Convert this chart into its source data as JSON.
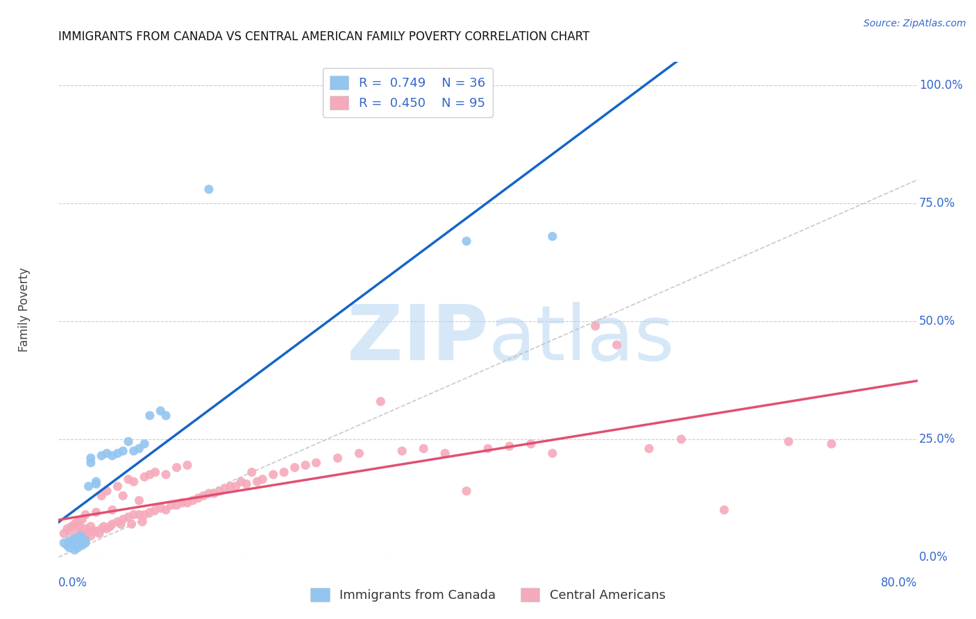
{
  "title": "IMMIGRANTS FROM CANADA VS CENTRAL AMERICAN FAMILY POVERTY CORRELATION CHART",
  "source": "Source: ZipAtlas.com",
  "ylabel": "Family Poverty",
  "ytick_labels": [
    "100.0%",
    "75.0%",
    "50.0%",
    "25.0%",
    "0.0%"
  ],
  "ytick_values": [
    1.0,
    0.75,
    0.5,
    0.25,
    0.0
  ],
  "xlim": [
    0.0,
    0.8
  ],
  "ylim": [
    0.0,
    1.05
  ],
  "canada_R": 0.749,
  "canada_N": 36,
  "central_R": 0.45,
  "central_N": 95,
  "canada_color": "#92C5F0",
  "central_color": "#F5AABB",
  "canada_line_color": "#1565C8",
  "central_line_color": "#E05070",
  "diagonal_color": "#bbbbbb",
  "text_color": "#3366CC",
  "background_color": "#ffffff",
  "watermark_color": "#d6e8f8",
  "canada_scatter_x": [
    0.005,
    0.008,
    0.01,
    0.01,
    0.012,
    0.014,
    0.015,
    0.015,
    0.018,
    0.018,
    0.02,
    0.02,
    0.022,
    0.022,
    0.025,
    0.025,
    0.028,
    0.03,
    0.03,
    0.035,
    0.035,
    0.04,
    0.045,
    0.05,
    0.055,
    0.06,
    0.065,
    0.07,
    0.075,
    0.08,
    0.085,
    0.095,
    0.1,
    0.14,
    0.38,
    0.46
  ],
  "canada_scatter_y": [
    0.03,
    0.025,
    0.02,
    0.035,
    0.03,
    0.025,
    0.04,
    0.015,
    0.02,
    0.03,
    0.03,
    0.045,
    0.025,
    0.04,
    0.035,
    0.03,
    0.15,
    0.2,
    0.21,
    0.155,
    0.16,
    0.215,
    0.22,
    0.215,
    0.22,
    0.225,
    0.245,
    0.225,
    0.23,
    0.24,
    0.3,
    0.31,
    0.3,
    0.78,
    0.67,
    0.68
  ],
  "central_scatter_x": [
    0.005,
    0.008,
    0.01,
    0.012,
    0.015,
    0.015,
    0.018,
    0.018,
    0.02,
    0.02,
    0.022,
    0.022,
    0.025,
    0.025,
    0.025,
    0.028,
    0.03,
    0.03,
    0.032,
    0.035,
    0.035,
    0.038,
    0.04,
    0.04,
    0.042,
    0.045,
    0.045,
    0.048,
    0.05,
    0.05,
    0.055,
    0.055,
    0.058,
    0.06,
    0.06,
    0.065,
    0.065,
    0.068,
    0.07,
    0.07,
    0.075,
    0.075,
    0.078,
    0.08,
    0.08,
    0.085,
    0.085,
    0.09,
    0.09,
    0.095,
    0.1,
    0.1,
    0.105,
    0.11,
    0.11,
    0.115,
    0.12,
    0.12,
    0.125,
    0.13,
    0.135,
    0.14,
    0.145,
    0.15,
    0.155,
    0.16,
    0.165,
    0.17,
    0.175,
    0.18,
    0.185,
    0.19,
    0.2,
    0.21,
    0.22,
    0.23,
    0.24,
    0.26,
    0.28,
    0.3,
    0.32,
    0.34,
    0.36,
    0.38,
    0.4,
    0.42,
    0.44,
    0.46,
    0.5,
    0.52,
    0.55,
    0.58,
    0.62,
    0.68,
    0.72
  ],
  "central_scatter_y": [
    0.05,
    0.06,
    0.055,
    0.065,
    0.04,
    0.07,
    0.055,
    0.075,
    0.04,
    0.065,
    0.05,
    0.08,
    0.04,
    0.06,
    0.09,
    0.055,
    0.045,
    0.065,
    0.055,
    0.055,
    0.095,
    0.05,
    0.06,
    0.13,
    0.065,
    0.06,
    0.14,
    0.065,
    0.07,
    0.1,
    0.075,
    0.15,
    0.07,
    0.08,
    0.13,
    0.085,
    0.165,
    0.07,
    0.09,
    0.16,
    0.09,
    0.12,
    0.075,
    0.09,
    0.17,
    0.095,
    0.175,
    0.1,
    0.18,
    0.105,
    0.1,
    0.175,
    0.11,
    0.11,
    0.19,
    0.115,
    0.115,
    0.195,
    0.12,
    0.125,
    0.13,
    0.135,
    0.135,
    0.14,
    0.145,
    0.15,
    0.15,
    0.16,
    0.155,
    0.18,
    0.16,
    0.165,
    0.175,
    0.18,
    0.19,
    0.195,
    0.2,
    0.21,
    0.22,
    0.33,
    0.225,
    0.23,
    0.22,
    0.14,
    0.23,
    0.235,
    0.24,
    0.22,
    0.49,
    0.45,
    0.23,
    0.25,
    0.1,
    0.245,
    0.24
  ]
}
